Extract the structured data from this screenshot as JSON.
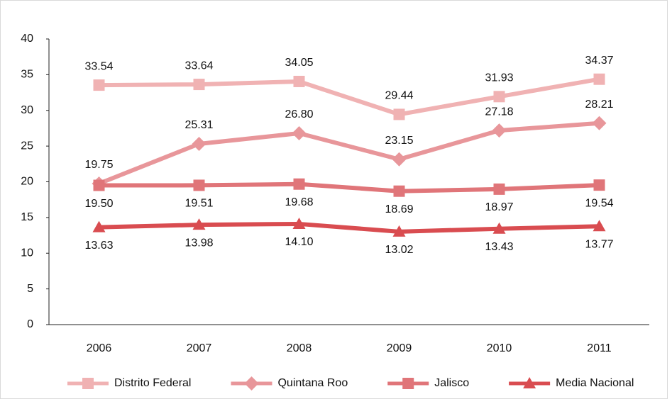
{
  "chart_data": {
    "type": "line",
    "categories": [
      "2006",
      "2007",
      "2008",
      "2009",
      "2010",
      "2011"
    ],
    "series": [
      {
        "name": "Distrito Federal",
        "color": "#f0b2b3",
        "marker": "square",
        "values": [
          33.54,
          33.64,
          34.05,
          29.44,
          31.93,
          34.37
        ],
        "value_labels": [
          "33.54",
          "33.64",
          "34.05",
          "29.44",
          "31.93",
          "34.37"
        ]
      },
      {
        "name": "Quintana Roo",
        "color": "#e8969a",
        "marker": "diamond",
        "values": [
          19.75,
          25.31,
          26.8,
          23.15,
          27.18,
          28.21
        ],
        "value_labels": [
          "19.75",
          "25.31",
          "26.80",
          "23.15",
          "27.18",
          "28.21"
        ]
      },
      {
        "name": "Jalisco",
        "color": "#e07579",
        "marker": "square",
        "values": [
          19.5,
          19.51,
          19.68,
          18.69,
          18.97,
          19.54
        ],
        "value_labels": [
          "19.50",
          "19.51",
          "19.68",
          "18.69",
          "18.97",
          "19.54"
        ]
      },
      {
        "name": "Media Nacional",
        "color": "#d94c50",
        "marker": "triangle",
        "values": [
          13.63,
          13.98,
          14.1,
          13.02,
          13.43,
          13.77
        ],
        "value_labels": [
          "13.63",
          "13.98",
          "14.10",
          "13.02",
          "13.43",
          "13.77"
        ]
      }
    ],
    "ylim": [
      0,
      40
    ],
    "yticks": [
      0,
      5,
      10,
      15,
      20,
      25,
      30,
      35,
      40
    ],
    "grid": false,
    "legend": "bottom"
  }
}
